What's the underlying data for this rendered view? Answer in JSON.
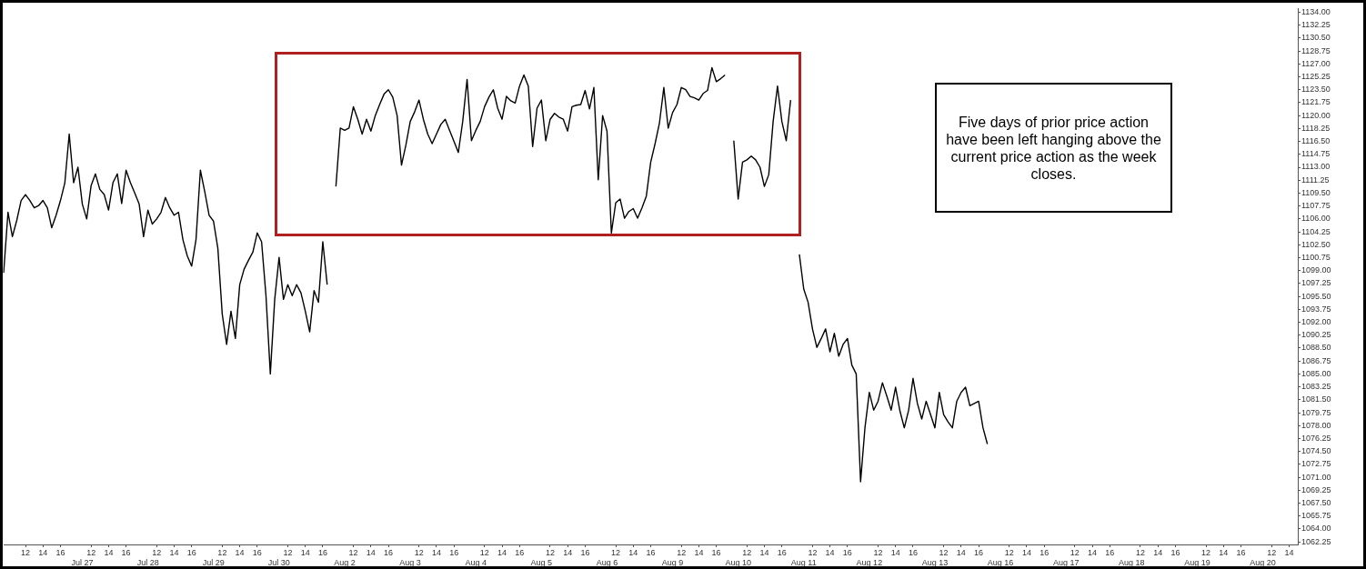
{
  "chart_data": {
    "type": "line",
    "color": "#000000",
    "categories": [
      null,
      null,
      null,
      null,
      null,
      "12",
      null,
      null,
      null,
      "14",
      null,
      null,
      null,
      "16",
      null,
      null,
      null,
      null,
      "Jul 27",
      null,
      "12",
      null,
      null,
      null,
      "14",
      null,
      null,
      null,
      "16",
      null,
      null,
      null,
      null,
      "Jul 28",
      null,
      "12",
      null,
      null,
      null,
      "14",
      null,
      null,
      null,
      "16",
      null,
      null,
      null,
      null,
      "Jul 29",
      null,
      "12",
      null,
      null,
      null,
      "14",
      null,
      null,
      null,
      "16",
      null,
      null,
      null,
      null,
      "Jul 30",
      null,
      "12",
      null,
      null,
      null,
      "14",
      null,
      null,
      null,
      "16",
      null,
      null,
      null,
      null,
      "Aug 2",
      null,
      "12",
      null,
      null,
      null,
      "14",
      null,
      null,
      null,
      "16",
      null,
      null,
      null,
      null,
      "Aug 3",
      null,
      "12",
      null,
      null,
      null,
      "14",
      null,
      null,
      null,
      "16",
      null,
      null,
      null,
      null,
      "Aug 4",
      null,
      "12",
      null,
      null,
      null,
      "14",
      null,
      null,
      null,
      "16",
      null,
      null,
      null,
      null,
      "Aug 5",
      null,
      "12",
      null,
      null,
      null,
      "14",
      null,
      null,
      null,
      "16",
      null,
      null,
      null,
      null,
      "Aug 6",
      null,
      "12",
      null,
      null,
      null,
      "14",
      null,
      null,
      null,
      "16",
      null,
      null,
      null,
      null,
      "Aug 9",
      null,
      "12",
      null,
      null,
      null,
      "14",
      null,
      null,
      null,
      "16",
      null,
      null,
      null,
      null,
      "Aug 10",
      null,
      "12",
      null,
      null,
      null,
      "14",
      null,
      null,
      null,
      "16",
      null,
      null,
      null,
      null,
      "Aug 11",
      null,
      "12",
      null,
      null,
      null,
      "14",
      null,
      null,
      null,
      "16",
      null,
      null,
      null,
      null,
      "Aug 12",
      null,
      "12",
      null,
      null,
      null,
      "14",
      null,
      null,
      null,
      "16",
      null,
      null,
      null,
      null,
      "Aug 13",
      null,
      "12",
      null,
      null,
      null,
      "14",
      null,
      null,
      null,
      "16",
      null,
      null,
      null,
      null,
      "Aug 16",
      null,
      "12",
      null,
      null,
      null,
      "14",
      null,
      null,
      null,
      "16",
      null,
      null,
      null,
      null,
      "Aug 17",
      null,
      "12",
      null,
      null,
      null,
      "14",
      null,
      null,
      null,
      "16",
      null,
      null,
      null,
      null,
      "Aug 18",
      null,
      "12",
      null,
      null,
      null,
      "14",
      null,
      null,
      null,
      "16",
      null,
      null,
      null,
      null,
      "Aug 19",
      null,
      "12",
      null,
      null,
      null,
      "14",
      null,
      null,
      null,
      "16",
      null,
      null,
      null,
      null,
      "Aug 20",
      null,
      "12",
      null,
      null,
      null,
      "14",
      null,
      null
    ],
    "values": [
      1098.7,
      1106.9,
      1103.6,
      1105.8,
      1108.5,
      1109.3,
      1108.5,
      1107.5,
      1107.8,
      1108.5,
      1107.5,
      1104.8,
      1106.5,
      1108.5,
      1110.9,
      1117.5,
      1110.9,
      1113.0,
      1108.0,
      1106.0,
      1110.5,
      1112.1,
      1110.0,
      1109.3,
      1107.2,
      1110.9,
      1112.1,
      1108.1,
      1112.6,
      1110.9,
      1109.5,
      1108.0,
      1103.6,
      1107.2,
      1105.3,
      1106.0,
      1106.9,
      1108.9,
      1107.5,
      1106.5,
      1106.9,
      1103.2,
      1101.0,
      1099.6,
      1103.2,
      1112.6,
      1109.7,
      1106.5,
      1105.7,
      1102.0,
      1093.1,
      1089.0,
      1093.5,
      1089.8,
      1097.1,
      1099.2,
      1100.4,
      1101.5,
      1104.1,
      1102.9,
      1095.6,
      1085.0,
      1095.1,
      1100.8,
      1095.1,
      1097.1,
      1095.6,
      1097.1,
      1096.0,
      1093.5,
      1090.7,
      1096.3,
      1094.7,
      1102.9,
      1097.1,
      null,
      1110.4,
      1118.3,
      1118.0,
      1118.3,
      1121.2,
      1119.5,
      1117.5,
      1119.5,
      1117.9,
      1120.0,
      1121.5,
      1122.9,
      1123.5,
      1122.5,
      1120.0,
      1113.3,
      1116.0,
      1119.2,
      1120.5,
      1122.1,
      1119.5,
      1117.5,
      1116.2,
      1117.5,
      1118.8,
      1119.5,
      1118.0,
      1116.5,
      1115.0,
      1119.2,
      1124.9,
      1116.6,
      1118.0,
      1119.2,
      1121.2,
      1122.5,
      1123.5,
      1121.0,
      1119.5,
      1122.6,
      1122.0,
      1121.7,
      1124.0,
      1125.5,
      1124.0,
      1115.8,
      1121.0,
      1122.1,
      1116.6,
      1119.5,
      1120.3,
      1119.8,
      1119.5,
      1117.9,
      1121.2,
      1121.4,
      1121.5,
      1123.4,
      1120.9,
      1123.8,
      1111.3,
      1120.0,
      1117.9,
      1104.1,
      1108.2,
      1108.7,
      1106.1,
      1107.0,
      1107.4,
      1106.1,
      1107.5,
      1109.1,
      1113.7,
      1116.2,
      1119.0,
      1123.8,
      1118.3,
      1120.4,
      1121.5,
      1123.8,
      1123.5,
      1122.6,
      1122.4,
      1122.1,
      1123.0,
      1123.4,
      1126.5,
      1124.6,
      1125.0,
      1125.5,
      null,
      1116.6,
      1108.7,
      1113.7,
      1114.0,
      1114.5,
      1114.0,
      1113.0,
      1110.4,
      1112.0,
      1119.2,
      1124.0,
      1119.2,
      1116.6,
      1122.1,
      null,
      1101.2,
      1096.5,
      1094.7,
      1091.1,
      1088.6,
      1089.8,
      1091.1,
      1088.0,
      1090.5,
      1087.4,
      1089.0,
      1089.8,
      1086.2,
      1085.0,
      1070.4,
      1077.7,
      1082.5,
      1080.1,
      1081.3,
      1083.8,
      1082.0,
      1080.1,
      1083.2,
      1080.0,
      1077.7,
      1080.1,
      1084.4,
      1081.0,
      1078.9,
      1081.3,
      1079.5,
      1077.7,
      1082.5,
      1079.5,
      1078.5,
      1077.7,
      1081.3,
      1082.5,
      1083.2,
      1080.7,
      1081.0,
      1081.3,
      1077.7,
      1075.5,
      null,
      null,
      null,
      null,
      null,
      null,
      null,
      null,
      null,
      null,
      null,
      null,
      null,
      null,
      null,
      null,
      null,
      null,
      null,
      null,
      null,
      null,
      null,
      null,
      null,
      null,
      null,
      null,
      null,
      null,
      null,
      null,
      null,
      null,
      null,
      null,
      null,
      null,
      null,
      null,
      null,
      null,
      null,
      null,
      null,
      null,
      null,
      null,
      null,
      null,
      null,
      null,
      null,
      null,
      null,
      null,
      null,
      null,
      null,
      null,
      null,
      null,
      null,
      null,
      null,
      null,
      null,
      null,
      null,
      null,
      null
    ],
    "ylim": [
      1061.9,
      1134.5
    ],
    "yticks": [
      {
        "value": 1062.25,
        "label": "1062.25"
      },
      {
        "value": 1064,
        "label": "1064.00"
      },
      {
        "value": 1065.75,
        "label": "1065.75"
      },
      {
        "value": 1067.5,
        "label": "1067.50"
      },
      {
        "value": 1069.25,
        "label": "1069.25"
      },
      {
        "value": 1071,
        "label": "1071.00"
      },
      {
        "value": 1072.75,
        "label": "1072.75"
      },
      {
        "value": 1074.5,
        "label": "1074.50"
      },
      {
        "value": 1076.25,
        "label": "1076.25"
      },
      {
        "value": 1078,
        "label": "1078.00"
      },
      {
        "value": 1079.75,
        "label": "1079.75"
      },
      {
        "value": 1081.5,
        "label": "1081.50"
      },
      {
        "value": 1083.25,
        "label": "1083.25"
      },
      {
        "value": 1085,
        "label": "1085.00"
      },
      {
        "value": 1086.75,
        "label": "1086.75"
      },
      {
        "value": 1088.5,
        "label": "1088.50"
      },
      {
        "value": 1090.25,
        "label": "1090.25"
      },
      {
        "value": 1092,
        "label": "1092.00"
      },
      {
        "value": 1093.75,
        "label": "1093.75"
      },
      {
        "value": 1095.5,
        "label": "1095.50"
      },
      {
        "value": 1097.25,
        "label": "1097.25"
      },
      {
        "value": 1099,
        "label": "1099.00"
      },
      {
        "value": 1100.75,
        "label": "1100.75"
      },
      {
        "value": 1102.5,
        "label": "1102.50"
      },
      {
        "value": 1104.25,
        "label": "1104.25"
      },
      {
        "value": 1106,
        "label": "1106.00"
      },
      {
        "value": 1107.75,
        "label": "1107.75"
      },
      {
        "value": 1109.5,
        "label": "1109.50"
      },
      {
        "value": 1111.25,
        "label": "1111.25"
      },
      {
        "value": 1113,
        "label": "1113.00"
      },
      {
        "value": 1114.75,
        "label": "1114.75"
      },
      {
        "value": 1116.5,
        "label": "1116.50"
      },
      {
        "value": 1118.25,
        "label": "1118.25"
      },
      {
        "value": 1120,
        "label": "1120.00"
      },
      {
        "value": 1121.75,
        "label": "1121.75"
      },
      {
        "value": 1123.5,
        "label": "1123.50"
      },
      {
        "value": 1125.25,
        "label": "1125.25"
      },
      {
        "value": 1127,
        "label": "1127.00"
      },
      {
        "value": 1128.75,
        "label": "1128.75"
      },
      {
        "value": 1130.5,
        "label": "1130.50"
      },
      {
        "value": 1132.25,
        "label": "1132.25"
      },
      {
        "value": 1134,
        "label": "1134.00"
      }
    ],
    "annotations": [
      "Five days of prior price action have been left hanging above the current price action as the week closes."
    ]
  }
}
